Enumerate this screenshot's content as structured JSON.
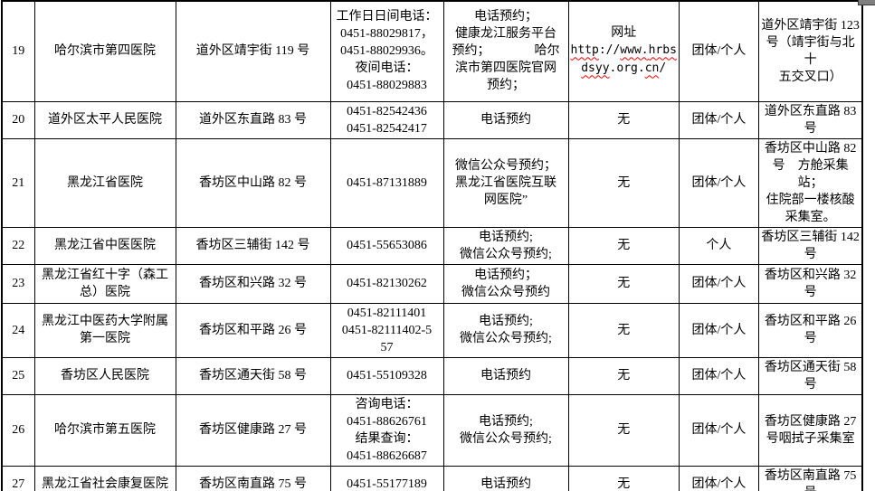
{
  "colors": {
    "border": "#000000",
    "text": "#000000",
    "squiggle": "#ff0000",
    "page-bg": "#ffffff",
    "fragment": "#7f7f7f"
  },
  "table": {
    "rows": [
      {
        "number": "19",
        "hospital": "哈尔滨市第四医院",
        "address": "道外区靖宇街 119 号",
        "phone": "工作日日间电话：\n0451-88029817，\n0451-88029936。\n夜间电话：\n0451-88029883",
        "reservation": "电话预约；\n健康龙江服务平台\n预约；　　　　哈尔\n滨市第四医院官网\n预约；",
        "website": {
          "label": "网址",
          "segments": [
            {
              "t": "http",
              "wavy": true
            },
            {
              "t": "://",
              "wavy": false
            },
            {
              "t": "www.",
              "wavy": true
            },
            {
              "t": "hrbs",
              "wavy": true
            },
            {
              "t": "\n",
              "wavy": false
            },
            {
              "t": "dsyy",
              "wavy": true
            },
            {
              "t": ".",
              "wavy": false
            },
            {
              "t": "org",
              "wavy": false
            },
            {
              "t": ".",
              "wavy": false
            },
            {
              "t": "cn",
              "wavy": true
            },
            {
              "t": "/",
              "wavy": false
            }
          ]
        },
        "group": "团体/个人",
        "location": "道外区靖宇街 123\n号（靖宇街与北十\n五交叉口）"
      },
      {
        "number": "20",
        "hospital": "道外区太平人民医院",
        "address": "道外区东直路 83 号",
        "phone": "0451-82542436\n0451-82542417",
        "reservation": "电话预约",
        "website": "无",
        "group": "团体/个人",
        "location": "道外区东直路 83\n号"
      },
      {
        "number": "21",
        "hospital": "黑龙江省医院",
        "address": "香坊区中山路 82 号",
        "phone": "0451-87131889",
        "reservation": "微信公众号预约；\n黑龙江省医院互联\n网医院”",
        "website": "无",
        "group": "团体/个人",
        "location": "香坊区中山路 82\n号　方舱采集站；\n住院部一楼核酸\n采集室。"
      },
      {
        "number": "22",
        "hospital": "黑龙江省中医医院",
        "address": "香坊区三辅街 142 号",
        "phone": "0451-55653086",
        "reservation": "电话预约;\n微信公众号预约;",
        "website": "无",
        "group": "个人",
        "location": "香坊区三辅街 142\n号"
      },
      {
        "number": "23",
        "hospital": "黑龙江省红十字（森工\n总）医院",
        "address": "香坊区和兴路 32 号",
        "phone": "0451-82130262",
        "reservation": "电话预约；\n微信公众号预约",
        "website": "无",
        "group": "团体/个人",
        "location": "香坊区和兴路 32\n号"
      },
      {
        "number": "24",
        "hospital": "黑龙江中医药大学附属\n第一医院",
        "address": "香坊区和平路 26 号",
        "phone": "0451-82111401\n0451-82111402-5\n57",
        "reservation": "电话预约;\n微信公众号预约;",
        "website": "无",
        "group": "团体/个人",
        "location": "香坊区和平路 26\n号"
      },
      {
        "number": "25",
        "hospital": "香坊区人民医院",
        "address": "香坊区通天街 58 号",
        "phone": "0451-55109328",
        "reservation": "电话预约",
        "website": "无",
        "group": "团体/个人",
        "location": "香坊区通天街 58\n号"
      },
      {
        "number": "26",
        "hospital": "哈尔滨市第五医院",
        "address": "香坊区健康路 27 号",
        "phone": "咨询电话：\n0451-88626761\n结果查询：\n0451-88626687",
        "reservation": "电话预约;\n微信公众号预约;",
        "website": "无",
        "group": "团体/个人",
        "location": "香坊区健康路 27\n号咽拭子采集室"
      },
      {
        "number": "27",
        "hospital": "黑龙江省社会康复医院",
        "address": "香坊区南直路 75 号",
        "phone": "0451-55177189",
        "reservation": "电话预约",
        "website": "无",
        "group": "团体/个人",
        "location": "香坊区南直路 75\n号"
      }
    ]
  }
}
